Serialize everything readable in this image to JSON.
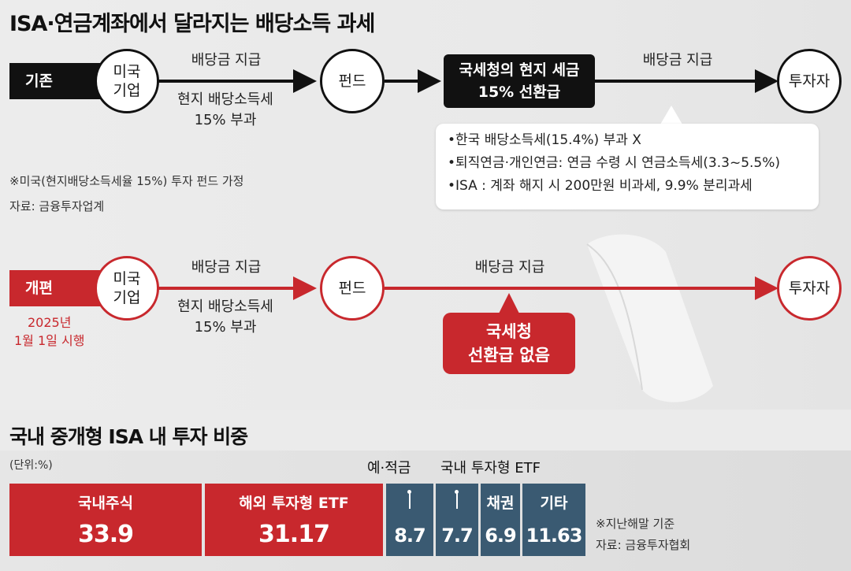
{
  "title": "ISA·연금계좌에서 달라지는 배당소득 과세",
  "current": {
    "tag": "기존",
    "company": "미국\n기업",
    "label_top": "배당금 지급",
    "label_bottom": "현지 배당소득세\n15% 부과",
    "fund": "펀드",
    "box_line1": "국세청의 현지 세금",
    "box_line2": "15% 선환급",
    "label_top2": "배당금 지급",
    "investor": "투자자"
  },
  "callout": {
    "items": [
      "•한국 배당소득세(15.4%) 부과 X",
      "•퇴직연금·개인연금: 연금 수령 시 연금소득세(3.3~5.5%)",
      "•ISA : 계좌 해지 시 200만원 비과세, 9.9% 분리과세"
    ]
  },
  "notes": {
    "assumption": "※미국(현지배당소득세율 15%) 투자 펀드 가정",
    "source": "자료: 금융투자업계"
  },
  "reform": {
    "tag": "개편",
    "date": "2025년\n1월 1일 시행",
    "company": "미국\n기업",
    "label_top": "배당금 지급",
    "label_bottom": "현지 배당소득세\n15% 부과",
    "fund": "펀드",
    "label_top2": "배당금 지급",
    "box_line1": "국세청",
    "box_line2": "선환급 없음",
    "investor": "투자자"
  },
  "bottom": {
    "title": "국내 중개형 ISA 내 투자 비중",
    "unit": "(단위:%)",
    "ext_label_1": "예·적금",
    "ext_label_2": "국내 투자형 ETF",
    "segments": [
      {
        "label": "국내주식",
        "value": "33.9",
        "color": "#c8282d"
      },
      {
        "label": "해외 투자형 ETF",
        "value": "31.17",
        "color": "#c8282d"
      },
      {
        "label": "",
        "value": "8.7",
        "color": "#3a5a72"
      },
      {
        "label": "",
        "value": "7.7",
        "color": "#3a5a72"
      },
      {
        "label": "채권",
        "value": "6.9",
        "color": "#3a5a72"
      },
      {
        "label": "기타",
        "value": "11.63",
        "color": "#3a5a72"
      }
    ],
    "note1": "※지난해말 기준",
    "note2": "자료: 금융투자협회"
  }
}
